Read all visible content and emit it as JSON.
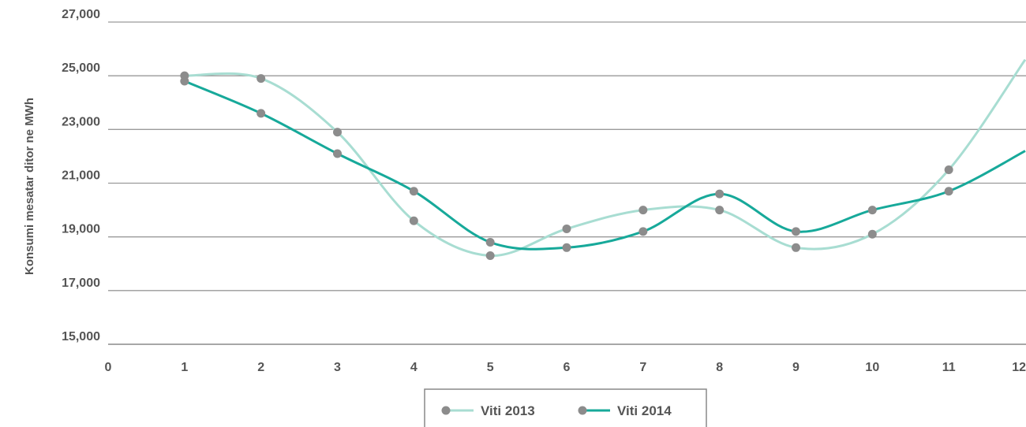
{
  "chart_data": {
    "type": "line",
    "title": "",
    "xlabel": "",
    "ylabel": "Konsumi mesatar ditor ne MWh",
    "x": [
      1,
      2,
      3,
      4,
      5,
      6,
      7,
      8,
      9,
      10,
      11,
      12
    ],
    "xticks": [
      "0",
      "1",
      "2",
      "3",
      "4",
      "5",
      "6",
      "7",
      "8",
      "9",
      "10",
      "11",
      "12"
    ],
    "xlim": [
      0,
      12
    ],
    "yticks": [
      "15,000",
      "17,000",
      "19,000",
      "21,000",
      "23,000",
      "25,000",
      "27,000"
    ],
    "ylim": [
      15000,
      27000
    ],
    "grid": true,
    "legend_position": "bottom-center",
    "series": [
      {
        "name": "Viti 2013",
        "color": "#a8ddd2",
        "marker_color": "#8c8c8c",
        "values": [
          25000,
          24900,
          22900,
          19600,
          18300,
          19300,
          20000,
          20000,
          18600,
          19100,
          21500,
          25600
        ]
      },
      {
        "name": "Viti 2014",
        "color": "#17a99a",
        "marker_color": "#8c8c8c",
        "values": [
          24800,
          23600,
          22100,
          20700,
          18800,
          18600,
          19200,
          20600,
          19200,
          20000,
          20700,
          22200
        ]
      }
    ]
  }
}
